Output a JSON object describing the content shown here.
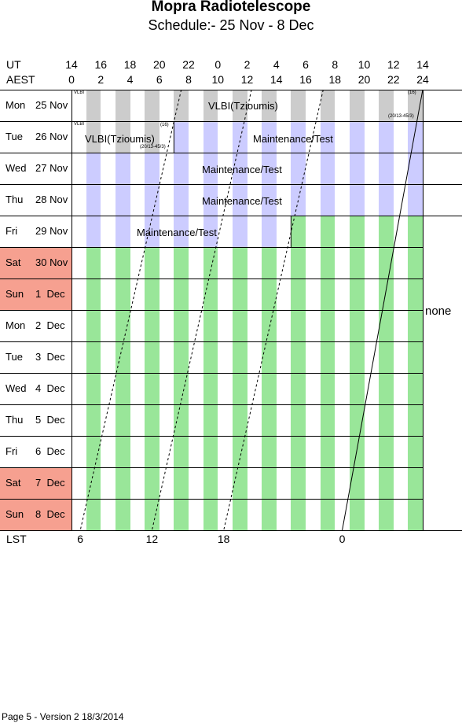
{
  "title": "Mopra Radiotelescope",
  "subtitle": "Schedule:- 25 Nov - 8  Dec",
  "axes": {
    "ut_label": "UT",
    "aest_label": "AEST",
    "lst_label": "LST",
    "ut_ticks": [
      "14",
      "16",
      "18",
      "20",
      "22",
      "0",
      "2",
      "4",
      "6",
      "8",
      "10",
      "12",
      "14"
    ],
    "aest_ticks": [
      "0",
      "2",
      "4",
      "6",
      "8",
      "10",
      "12",
      "14",
      "16",
      "18",
      "20",
      "22",
      "24"
    ],
    "lst_ticks": [
      "6",
      "12",
      "18",
      "0"
    ]
  },
  "days": [
    {
      "dow": "Mon",
      "date": "25 Nov",
      "weekend": false
    },
    {
      "dow": "Tue",
      "date": "26 Nov",
      "weekend": false
    },
    {
      "dow": "Wed",
      "date": "27 Nov",
      "weekend": false
    },
    {
      "dow": "Thu",
      "date": "28 Nov",
      "weekend": false
    },
    {
      "dow": "Fri",
      "date": "29 Nov",
      "weekend": false
    },
    {
      "dow": "Sat",
      "date": "30 Nov",
      "weekend": true
    },
    {
      "dow": "Sun",
      "date": "1  Dec",
      "weekend": true
    },
    {
      "dow": "Mon",
      "date": "2  Dec",
      "weekend": false
    },
    {
      "dow": "Tue",
      "date": "3  Dec",
      "weekend": false
    },
    {
      "dow": "Wed",
      "date": "4  Dec",
      "weekend": false
    },
    {
      "dow": "Thu",
      "date": "5  Dec",
      "weekend": false
    },
    {
      "dow": "Fri",
      "date": "6  Dec",
      "weekend": false
    },
    {
      "dow": "Sat",
      "date": "7  Dec",
      "weekend": true
    },
    {
      "dow": "Sun",
      "date": "8  Dec",
      "weekend": true
    }
  ],
  "blocks": {
    "vlbi_label": "VLBI(Tzioumis)",
    "maint_label": "Maintenance/Test",
    "vlbi_small": "VLBI",
    "code_16": "(16)",
    "code_20": "(20/13-45/3)"
  },
  "none_label": "none",
  "footer": "Page 5 - Version 2  18/3/2014",
  "colors": {
    "vlbi_stripe": "#cccccc",
    "maint_stripe": "#ccccff",
    "free_stripe": "#99e699",
    "weekend": "#f6a090"
  }
}
